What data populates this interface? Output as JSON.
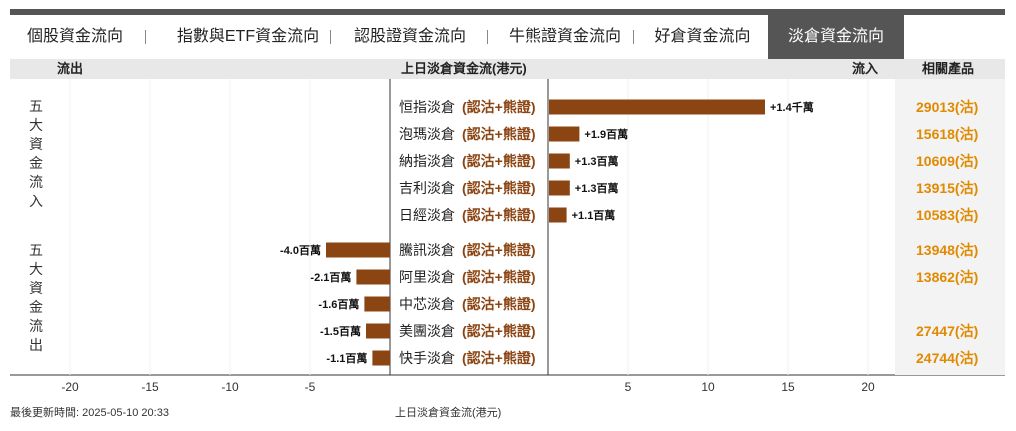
{
  "tabs": [
    {
      "label": "個股資金流向",
      "active": false
    },
    {
      "label": "指數與ETF資金流向",
      "active": false
    },
    {
      "label": "認股證資金流向",
      "active": false
    },
    {
      "label": "牛熊證資金流向",
      "active": false
    },
    {
      "label": "好倉資金流向",
      "active": false
    },
    {
      "label": "淡倉資金流向",
      "active": true
    }
  ],
  "header": {
    "outflow_label": "流出",
    "title": "上日淡倉資金流(港元)",
    "inflow_label": "流入",
    "products_label": "相關產品"
  },
  "groups": {
    "inflow_label": "五大資金流入",
    "outflow_label": "五大資金流出"
  },
  "colors": {
    "bar": "#8b4513",
    "product_text": "#e08a00",
    "tag_text": "#8b4513"
  },
  "chart_data": {
    "type": "bar",
    "orientation": "horizontal",
    "unit": "百萬",
    "xlim": [
      -25,
      25
    ],
    "x_ticks": [
      "-20",
      "-15",
      "-10",
      "-5",
      "5",
      "10",
      "15",
      "20"
    ],
    "x_tick_values": [
      -20,
      -15,
      -10,
      -5,
      5,
      10,
      15,
      20
    ],
    "xlabel": "上日淡倉資金流(港元)",
    "rows": [
      {
        "name": "恒指淡倉",
        "tag": "(認沽+熊證)",
        "value": 13.5,
        "label": "+1.4千萬",
        "product": "29013(沽)"
      },
      {
        "name": "泡瑪淡倉",
        "tag": "(認沽+熊證)",
        "value": 1.9,
        "label": "+1.9百萬",
        "product": "15618(沽)"
      },
      {
        "name": "納指淡倉",
        "tag": "(認沽+熊證)",
        "value": 1.3,
        "label": "+1.3百萬",
        "product": "10609(沽)"
      },
      {
        "name": "吉利淡倉",
        "tag": "(認沽+熊證)",
        "value": 1.3,
        "label": "+1.3百萬",
        "product": "13915(沽)"
      },
      {
        "name": "日經淡倉",
        "tag": "(認沽+熊證)",
        "value": 1.1,
        "label": "+1.1百萬",
        "product": "10583(沽)"
      },
      {
        "name": "騰訊淡倉",
        "tag": "(認沽+熊證)",
        "value": -4.0,
        "label": "-4.0百萬",
        "product": "13948(沽)"
      },
      {
        "name": "阿里淡倉",
        "tag": "(認沽+熊證)",
        "value": -2.1,
        "label": "-2.1百萬",
        "product": "13862(沽)"
      },
      {
        "name": "中芯淡倉",
        "tag": "(認沽+熊證)",
        "value": -1.6,
        "label": "-1.6百萬",
        "product": ""
      },
      {
        "name": "美團淡倉",
        "tag": "(認沽+熊證)",
        "value": -1.5,
        "label": "-1.5百萬",
        "product": "27447(沽)"
      },
      {
        "name": "快手淡倉",
        "tag": "(認沽+熊證)",
        "value": -1.1,
        "label": "-1.1百萬",
        "product": "24744(沽)"
      }
    ]
  },
  "footer": {
    "updated": "最後更新時間: 2025-05-10 20:33",
    "axis_caption": "上日淡倉資金流(港元)"
  }
}
